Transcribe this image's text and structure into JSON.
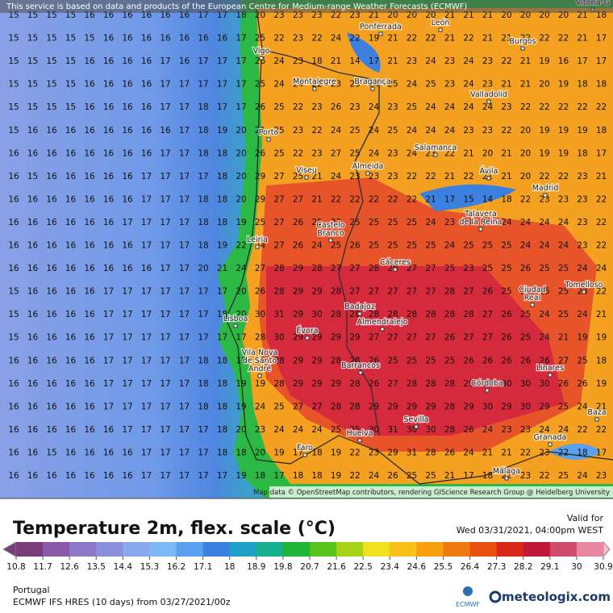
{
  "header": {
    "credit": "This service is based on data and products of the European Centre for Medium-range Weather Forecasts (ECMWF)"
  },
  "map": {
    "attribution": "Map data © OpenStreetMap contributors, rendering GIScience Research Group @ Heidelberg University",
    "cities": [
      [
        "Vitoria-G"
      ],
      [
        "Ponferrada"
      ],
      [
        "León"
      ],
      [
        "Vigo"
      ],
      [
        "Burgos"
      ],
      [
        "Montalegre"
      ],
      [
        "Bragança"
      ],
      [
        "Valladolid"
      ],
      [
        "Porto"
      ],
      [
        "Salamanca"
      ],
      [
        "Viseu"
      ],
      [
        "Almeida"
      ],
      [
        "Ávila"
      ],
      [
        "Madrid"
      ],
      [
        "Castelo",
        "Branco"
      ],
      [
        "Talavera",
        "de la Reina"
      ],
      [
        "Leiria"
      ],
      [
        "Cáceres"
      ],
      [
        "Ciudad",
        "Real"
      ],
      [
        "Tomelloso"
      ],
      [
        "Badajoz"
      ],
      [
        "Lisboa"
      ],
      [
        "Almendralejo"
      ],
      [
        "Évora"
      ],
      [
        "Vila Nova",
        "de Santo",
        "André"
      ],
      [
        "Barrancos"
      ],
      [
        "Linares"
      ],
      [
        "Córdoba"
      ],
      [
        "Baza"
      ],
      [
        "Sevilla"
      ],
      [
        "Huelva"
      ],
      [
        "Granada"
      ],
      [
        "Faro"
      ],
      [
        "Málaga"
      ]
    ],
    "grid": [
      [
        15,
        15,
        15,
        15,
        16,
        16,
        16,
        16,
        16,
        16,
        17,
        17,
        18,
        20,
        23,
        23,
        23,
        22,
        23,
        21,
        20,
        20,
        20,
        21,
        21,
        21,
        20,
        20,
        20,
        20,
        21,
        18
      ],
      [
        15,
        15,
        15,
        15,
        15,
        16,
        16,
        16,
        16,
        16,
        16,
        16,
        17,
        25,
        22,
        23,
        22,
        24,
        22,
        19,
        21,
        22,
        22,
        21,
        22,
        21,
        21,
        22,
        22,
        22,
        21,
        17
      ],
      [
        15,
        15,
        15,
        15,
        16,
        16,
        16,
        16,
        17,
        16,
        17,
        17,
        17,
        26,
        24,
        23,
        18,
        21,
        14,
        17,
        21,
        23,
        24,
        23,
        24,
        23,
        22,
        21,
        19,
        16,
        17,
        17
      ],
      [
        15,
        15,
        15,
        15,
        16,
        16,
        16,
        16,
        17,
        17,
        17,
        17,
        17,
        25,
        24,
        24,
        22,
        23,
        23,
        24,
        25,
        24,
        25,
        23,
        24,
        23,
        21,
        21,
        20,
        19,
        18,
        18
      ],
      [
        15,
        15,
        15,
        15,
        16,
        16,
        16,
        16,
        17,
        17,
        18,
        17,
        17,
        26,
        25,
        22,
        23,
        26,
        23,
        24,
        23,
        25,
        24,
        24,
        24,
        24,
        23,
        22,
        22,
        22,
        22,
        22
      ],
      [
        15,
        16,
        16,
        16,
        16,
        16,
        16,
        16,
        16,
        17,
        18,
        19,
        20,
        21,
        25,
        23,
        22,
        24,
        25,
        24,
        25,
        24,
        24,
        24,
        23,
        23,
        22,
        20,
        19,
        19,
        19,
        18
      ],
      [
        16,
        16,
        16,
        16,
        16,
        16,
        16,
        16,
        17,
        17,
        18,
        18,
        20,
        26,
        25,
        22,
        23,
        27,
        25,
        24,
        23,
        24,
        23,
        22,
        21,
        20,
        21,
        20,
        19,
        19,
        18,
        17
      ],
      [
        16,
        15,
        16,
        16,
        16,
        16,
        16,
        17,
        17,
        17,
        17,
        18,
        20,
        29,
        27,
        25,
        21,
        24,
        23,
        23,
        23,
        22,
        22,
        21,
        22,
        21,
        21,
        20,
        22,
        22,
        23,
        21
      ],
      [
        16,
        16,
        16,
        16,
        16,
        16,
        16,
        17,
        17,
        17,
        18,
        18,
        20,
        29,
        27,
        27,
        21,
        22,
        22,
        22,
        22,
        22,
        21,
        17,
        15,
        14,
        18,
        22,
        23,
        23,
        23,
        22
      ],
      [
        16,
        16,
        16,
        16,
        16,
        16,
        17,
        17,
        17,
        17,
        18,
        18,
        19,
        25,
        27,
        26,
        25,
        23,
        25,
        25,
        25,
        25,
        24,
        23,
        24,
        25,
        24,
        24,
        24,
        24,
        23,
        22
      ],
      [
        16,
        16,
        16,
        16,
        16,
        16,
        16,
        17,
        17,
        17,
        18,
        19,
        22,
        24,
        27,
        26,
        24,
        25,
        26,
        25,
        25,
        25,
        25,
        24,
        25,
        25,
        25,
        24,
        24,
        24,
        23,
        22
      ],
      [
        16,
        16,
        16,
        16,
        16,
        16,
        16,
        16,
        17,
        17,
        20,
        21,
        24,
        27,
        28,
        29,
        28,
        27,
        27,
        28,
        28,
        27,
        27,
        25,
        23,
        25,
        25,
        26,
        25,
        25,
        24,
        24
      ],
      [
        15,
        16,
        16,
        16,
        16,
        17,
        17,
        17,
        17,
        17,
        17,
        17,
        20,
        26,
        28,
        29,
        29,
        28,
        27,
        27,
        27,
        27,
        27,
        28,
        27,
        26,
        25,
        24,
        25,
        25,
        23,
        22
      ],
      [
        15,
        16,
        16,
        16,
        16,
        17,
        17,
        17,
        17,
        17,
        17,
        18,
        20,
        30,
        31,
        29,
        30,
        28,
        28,
        28,
        28,
        28,
        28,
        28,
        28,
        27,
        26,
        25,
        24,
        25,
        24,
        21
      ],
      [
        15,
        16,
        16,
        16,
        16,
        17,
        17,
        17,
        17,
        17,
        17,
        17,
        17,
        28,
        30,
        29,
        29,
        29,
        29,
        27,
        27,
        27,
        27,
        26,
        27,
        27,
        26,
        25,
        24,
        21,
        19,
        19
      ],
      [
        16,
        16,
        16,
        16,
        16,
        17,
        17,
        17,
        17,
        17,
        18,
        18,
        18,
        19,
        28,
        29,
        29,
        28,
        28,
        26,
        25,
        25,
        25,
        25,
        26,
        26,
        26,
        26,
        26,
        27,
        25,
        18
      ],
      [
        16,
        16,
        16,
        16,
        16,
        17,
        17,
        17,
        17,
        17,
        18,
        18,
        19,
        19,
        28,
        29,
        29,
        29,
        28,
        26,
        27,
        28,
        28,
        28,
        29,
        29,
        30,
        30,
        30,
        26,
        26,
        19
      ],
      [
        16,
        16,
        16,
        16,
        16,
        17,
        17,
        17,
        17,
        17,
        18,
        18,
        19,
        24,
        25,
        27,
        27,
        28,
        28,
        29,
        29,
        29,
        29,
        28,
        29,
        30,
        29,
        30,
        29,
        25,
        24,
        21
      ],
      [
        16,
        16,
        16,
        16,
        16,
        16,
        17,
        17,
        17,
        17,
        17,
        18,
        20,
        23,
        24,
        24,
        24,
        25,
        25,
        30,
        31,
        30,
        30,
        28,
        26,
        24,
        23,
        23,
        24,
        24,
        22,
        22
      ],
      [
        16,
        16,
        15,
        16,
        16,
        16,
        16,
        17,
        17,
        17,
        17,
        18,
        18,
        20,
        19,
        17,
        18,
        19,
        22,
        23,
        29,
        31,
        28,
        26,
        24,
        21,
        21,
        22,
        23,
        22,
        18,
        17
      ],
      [
        16,
        16,
        16,
        16,
        16,
        16,
        16,
        17,
        17,
        17,
        17,
        17,
        19,
        18,
        17,
        18,
        18,
        19,
        22,
        24,
        26,
        25,
        25,
        21,
        17,
        18,
        22,
        23,
        22,
        25,
        24,
        23
      ]
    ]
  },
  "legend": {
    "title": "Temperature 2m, flex. scale (°C)",
    "valid_label": "Valid for",
    "valid_time": "Wed 03/31/2021, 04:00pm WEST",
    "ticks": [
      10.8,
      11.7,
      12.6,
      13.5,
      14.4,
      15.3,
      16.2,
      17.1,
      18,
      18.9,
      19.8,
      20.7,
      21.6,
      22.5,
      23.4,
      24.6,
      25.5,
      26.4,
      27.3,
      28.2,
      29.1,
      30,
      30.9
    ],
    "colors": [
      "#7a3b7a",
      "#8a5aa8",
      "#8c78c8",
      "#8a90dc",
      "#8aa8ee",
      "#7cb8f6",
      "#5aa0ee",
      "#3c80e0",
      "#1ea0c8",
      "#16b08c",
      "#22b436",
      "#58c420",
      "#a8d418",
      "#f0e020",
      "#f8c018",
      "#f8a010",
      "#f07a10",
      "#e85010",
      "#d82818",
      "#c01838",
      "#d04c6c",
      "#e888a0",
      "#f4c0cc"
    ]
  },
  "footer": {
    "region": "Portugal",
    "model": "ECMWF IFS HRES (10 days) from 03/27/2021/00z",
    "ecmwf": "ECMWF",
    "brand": "meteologix.com"
  }
}
